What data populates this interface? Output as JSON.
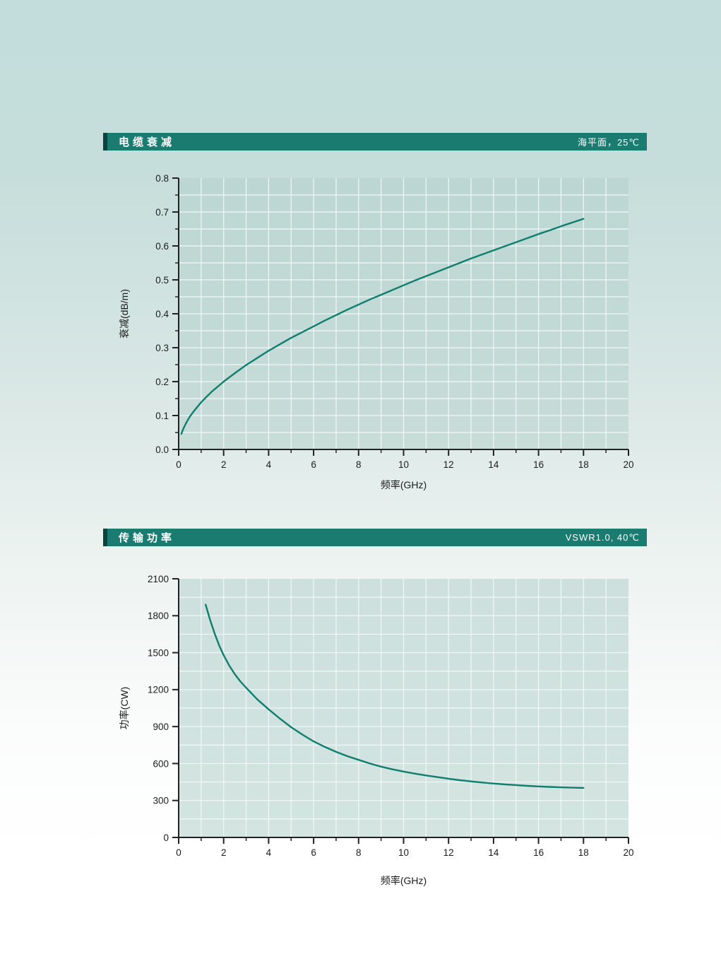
{
  "colors": {
    "header_bg": "#1a7b71",
    "header_left_edge": "#0b443e",
    "header_text": "#ffffff",
    "curve": "#0f7e6e",
    "plot_bg_top_1": "#bcd7d3",
    "plot_bg_bottom_1": "#c8dcd8",
    "plot_bg_top_2": "#cde0dd",
    "plot_bg_bottom_2": "#d3e4e1",
    "grid": "#f2f8f7",
    "axis": "#222222",
    "tick_label": "#1c1c1c",
    "page_bg_top": "#c2dddc",
    "page_bg_bottom": "#ffffff"
  },
  "chart_data": [
    {
      "type": "line",
      "title": "电缆衰减",
      "condition": "海平面，25℃",
      "xlabel": "频率(GHz)",
      "ylabel": "衰减(dB/m)",
      "xlim": [
        0,
        20
      ],
      "ylim": [
        0,
        0.8
      ],
      "x_major_step": 2,
      "x_minor_step": 1,
      "y_major_step": 0.1,
      "y_minor_step": 0.05,
      "grid_x_step": 1,
      "grid_y_step": 0.05,
      "y_tick_decimals": 1,
      "grid": "on",
      "legend": "none",
      "series": [
        {
          "name": "衰减",
          "points": [
            [
              0.12,
              0.046
            ],
            [
              0.2,
              0.06
            ],
            [
              0.3,
              0.074
            ],
            [
              0.4,
              0.086
            ],
            [
              0.5,
              0.097
            ],
            [
              0.7,
              0.115
            ],
            [
              1,
              0.139
            ],
            [
              1.25,
              0.156
            ],
            [
              1.5,
              0.172
            ],
            [
              2,
              0.2
            ],
            [
              2.5,
              0.225
            ],
            [
              3,
              0.249
            ],
            [
              3.5,
              0.27
            ],
            [
              4,
              0.291
            ],
            [
              4.5,
              0.31
            ],
            [
              5,
              0.329
            ],
            [
              5.5,
              0.346
            ],
            [
              6,
              0.363
            ],
            [
              6.5,
              0.38
            ],
            [
              7,
              0.396
            ],
            [
              7.5,
              0.412
            ],
            [
              8,
              0.427
            ],
            [
              8.5,
              0.442
            ],
            [
              9,
              0.456
            ],
            [
              9.5,
              0.47
            ],
            [
              10,
              0.484
            ],
            [
              10.5,
              0.498
            ],
            [
              11,
              0.511
            ],
            [
              11.5,
              0.524
            ],
            [
              12,
              0.537
            ],
            [
              12.5,
              0.55
            ],
            [
              13,
              0.563
            ],
            [
              13.5,
              0.575
            ],
            [
              14,
              0.587
            ],
            [
              14.5,
              0.599
            ],
            [
              15,
              0.611
            ],
            [
              15.5,
              0.623
            ],
            [
              16,
              0.635
            ],
            [
              16.5,
              0.646
            ],
            [
              17,
              0.658
            ],
            [
              17.5,
              0.669
            ],
            [
              18,
              0.68
            ]
          ]
        }
      ]
    },
    {
      "type": "line",
      "title": "传输功率",
      "condition": "VSWR1.0, 40℃",
      "xlabel": "频率(GHz)",
      "ylabel": "功率(CW)",
      "xlim": [
        0,
        20
      ],
      "ylim": [
        0,
        2100
      ],
      "x_major_step": 2,
      "x_minor_step": 1,
      "y_major_step": 300,
      "y_minor_step": null,
      "grid_x_step": 1,
      "grid_y_step": 150,
      "y_tick_decimals": 0,
      "grid": "on",
      "legend": "none",
      "series": [
        {
          "name": "功率",
          "points": [
            [
              1.2,
              1890
            ],
            [
              1.4,
              1765
            ],
            [
              1.6,
              1655
            ],
            [
              1.8,
              1560
            ],
            [
              2,
              1480
            ],
            [
              2.25,
              1395
            ],
            [
              2.5,
              1325
            ],
            [
              2.75,
              1265
            ],
            [
              3,
              1215
            ],
            [
              3.5,
              1120
            ],
            [
              4,
              1040
            ],
            [
              4.5,
              965
            ],
            [
              5,
              895
            ],
            [
              5.5,
              835
            ],
            [
              6,
              780
            ],
            [
              6.5,
              735
            ],
            [
              7,
              695
            ],
            [
              7.5,
              660
            ],
            [
              8,
              630
            ],
            [
              8.5,
              600
            ],
            [
              9,
              575
            ],
            [
              9.5,
              553
            ],
            [
              10,
              535
            ],
            [
              10.5,
              518
            ],
            [
              11,
              503
            ],
            [
              11.5,
              490
            ],
            [
              12,
              477
            ],
            [
              12.5,
              465
            ],
            [
              13,
              455
            ],
            [
              13.5,
              446
            ],
            [
              14,
              438
            ],
            [
              14.5,
              431
            ],
            [
              15,
              425
            ],
            [
              15.5,
              419
            ],
            [
              16,
              414
            ],
            [
              16.5,
              410
            ],
            [
              17,
              407
            ],
            [
              17.5,
              404
            ],
            [
              18,
              402
            ]
          ]
        }
      ]
    }
  ]
}
